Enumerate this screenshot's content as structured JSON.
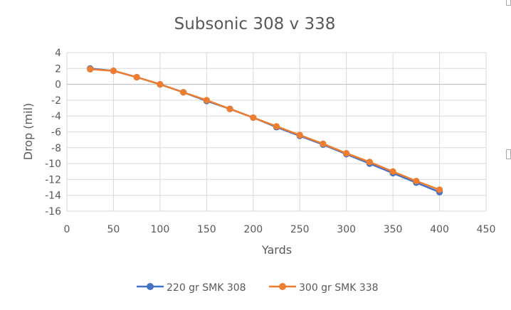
{
  "chart_data": {
    "type": "line",
    "title": "Subsonic 308 v 338",
    "xlabel": "Yards",
    "ylabel": "Drop (mil)",
    "xlim": [
      0,
      450
    ],
    "ylim": [
      -16,
      4
    ],
    "x_ticks": [
      0,
      50,
      100,
      150,
      200,
      250,
      300,
      350,
      400,
      450
    ],
    "y_ticks": [
      4,
      2,
      0,
      -2,
      -4,
      -6,
      -8,
      -10,
      -12,
      -14,
      -16
    ],
    "grid": true,
    "legend_position": "bottom",
    "x": [
      25,
      50,
      75,
      100,
      125,
      150,
      175,
      200,
      225,
      250,
      275,
      300,
      325,
      350,
      375,
      400
    ],
    "series": [
      {
        "name": "220 gr SMK 308",
        "color": "#4472C4",
        "values": [
          2.0,
          1.7,
          0.9,
          0.0,
          -1.0,
          -2.1,
          -3.1,
          -4.2,
          -5.4,
          -6.5,
          -7.6,
          -8.8,
          -10.0,
          -11.2,
          -12.4,
          -13.6
        ]
      },
      {
        "name": "300 gr SMK 338",
        "color": "#ED7D31",
        "values": [
          1.9,
          1.7,
          0.9,
          0.0,
          -1.0,
          -2.0,
          -3.1,
          -4.2,
          -5.3,
          -6.4,
          -7.5,
          -8.7,
          -9.8,
          -11.0,
          -12.2,
          -13.3
        ]
      }
    ]
  }
}
